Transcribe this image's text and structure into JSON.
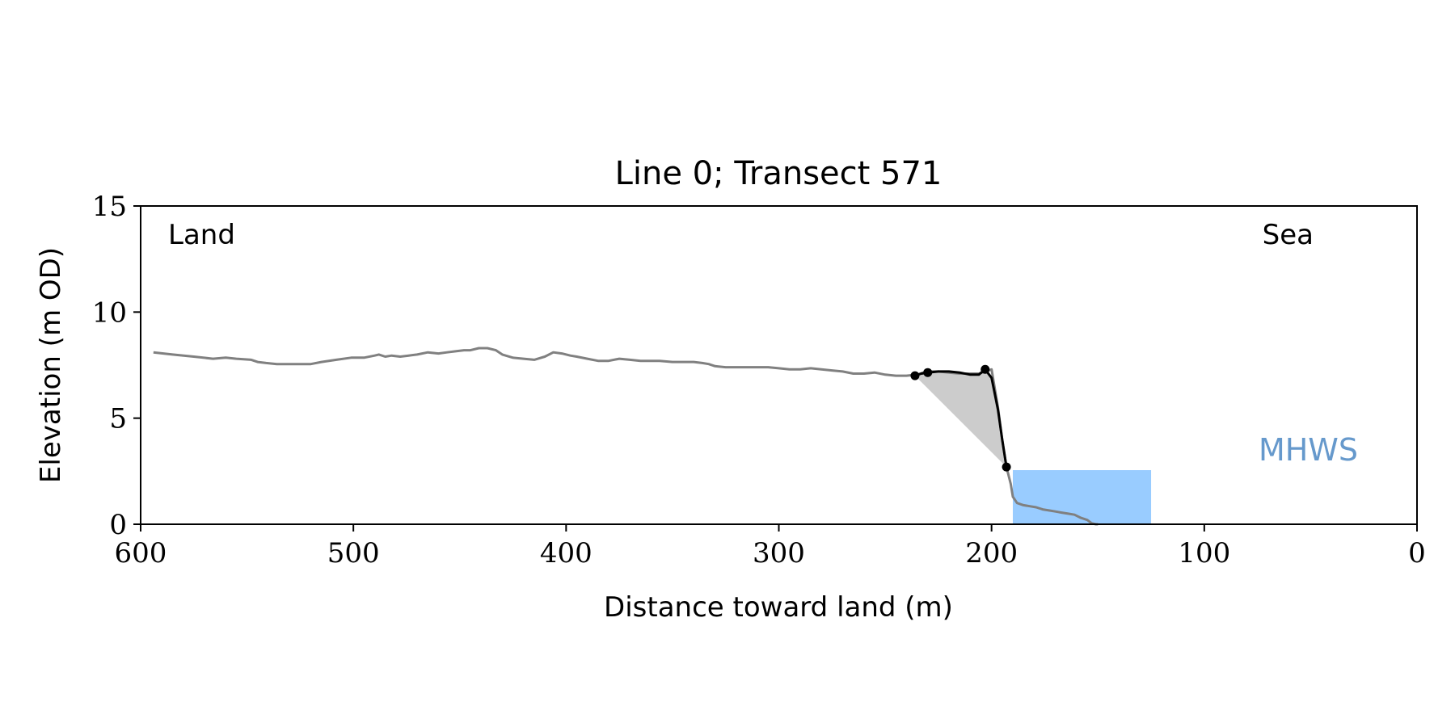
{
  "chart_data": {
    "type": "line",
    "title": "Line 0; Transect 571",
    "xlabel": "Distance toward land (m)",
    "ylabel": "Elevation (m OD)",
    "xlim": [
      600,
      0
    ],
    "ylim": [
      0,
      15
    ],
    "x_reversed": true,
    "xticks": [
      600,
      500,
      400,
      300,
      200,
      100,
      0
    ],
    "yticks": [
      0,
      5,
      10,
      15
    ],
    "grid": false,
    "annotations": {
      "land": "Land",
      "sea": "Sea",
      "mhws": "MHWS"
    },
    "colors": {
      "profile": "#808080",
      "cliff": "#000000",
      "fill": "#cccccc",
      "mhws_fill": "#99ccff",
      "mhws_text": "#6699cc"
    },
    "mhws": {
      "elevation": 2.55,
      "x_from": 190,
      "x_to": 125
    },
    "series": [
      {
        "role": "profile",
        "x": [
          594,
          585,
          575,
          566,
          560,
          555,
          548,
          545,
          541,
          536,
          530,
          520,
          515,
          508,
          501,
          495,
          490,
          488,
          485,
          482,
          478,
          474,
          470,
          465,
          460,
          456,
          452,
          448,
          445,
          441,
          437,
          433,
          430,
          425,
          420,
          415,
          410,
          406,
          402,
          398,
          395,
          390,
          385,
          380,
          375,
          370,
          365,
          360,
          356,
          350,
          345,
          340,
          336,
          333,
          330,
          325,
          320,
          315,
          310,
          305,
          300,
          295,
          290,
          285,
          280,
          275,
          270,
          265,
          260,
          255,
          250,
          245,
          240,
          235,
          232,
          230,
          225,
          220,
          215,
          210,
          206,
          203,
          200,
          197,
          195,
          193,
          191,
          190,
          188,
          185,
          182,
          179,
          176,
          173,
          170,
          167,
          164,
          161,
          158,
          155,
          153,
          151,
          150
        ],
        "y": [
          8.1,
          8.0,
          7.9,
          7.8,
          7.85,
          7.8,
          7.75,
          7.65,
          7.6,
          7.55,
          7.55,
          7.55,
          7.65,
          7.75,
          7.85,
          7.85,
          7.95,
          8.0,
          7.9,
          7.95,
          7.9,
          7.95,
          8.0,
          8.1,
          8.05,
          8.1,
          8.15,
          8.2,
          8.2,
          8.3,
          8.3,
          8.2,
          8.0,
          7.85,
          7.8,
          7.75,
          7.9,
          8.1,
          8.05,
          7.95,
          7.9,
          7.8,
          7.7,
          7.7,
          7.8,
          7.75,
          7.7,
          7.7,
          7.7,
          7.65,
          7.65,
          7.65,
          7.6,
          7.55,
          7.45,
          7.4,
          7.4,
          7.4,
          7.4,
          7.4,
          7.35,
          7.3,
          7.3,
          7.35,
          7.3,
          7.25,
          7.2,
          7.1,
          7.1,
          7.15,
          7.05,
          7.0,
          7.0,
          7.05,
          7.15,
          7.2,
          7.2,
          7.15,
          7.1,
          7.1,
          7.1,
          7.2,
          7.3,
          5.5,
          4.0,
          2.7,
          1.9,
          1.3,
          1.0,
          0.9,
          0.85,
          0.8,
          0.7,
          0.65,
          0.6,
          0.55,
          0.5,
          0.45,
          0.3,
          0.2,
          0.05,
          0.0,
          0.0
        ]
      },
      {
        "role": "cliff",
        "x": [
          236,
          233,
          230,
          225,
          220,
          215,
          210,
          206,
          203,
          200,
          197,
          195,
          193
        ],
        "y": [
          7.0,
          7.1,
          7.15,
          7.2,
          7.2,
          7.15,
          7.05,
          7.05,
          7.3,
          6.9,
          5.4,
          4.0,
          2.7
        ]
      },
      {
        "role": "cliff_points",
        "x": [
          236,
          230,
          203,
          193
        ],
        "y": [
          7.0,
          7.15,
          7.3,
          2.7
        ]
      }
    ]
  }
}
